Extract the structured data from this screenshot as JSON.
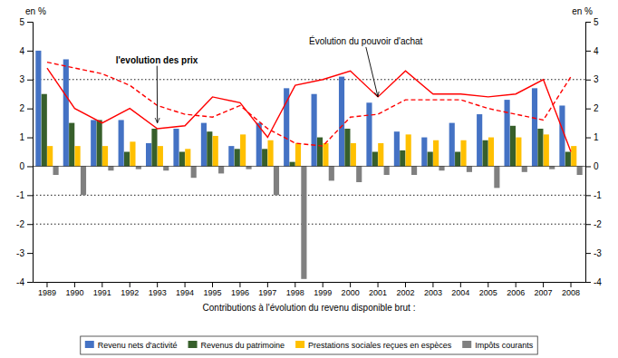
{
  "chart_data": {
    "type": "bar",
    "categories": [
      "1989",
      "1990",
      "1991",
      "1992",
      "1993",
      "1994",
      "1995",
      "1996",
      "1997",
      "1998",
      "1999",
      "2000",
      "2001",
      "2002",
      "2003",
      "2004",
      "2005",
      "2006",
      "2007",
      "2008"
    ],
    "series": [
      {
        "name": "Revenu nets d'activité",
        "type": "bar",
        "color": "#4472C4",
        "values": [
          4.0,
          3.7,
          1.6,
          1.6,
          0.8,
          1.3,
          1.5,
          0.7,
          1.5,
          2.7,
          2.5,
          3.1,
          2.2,
          1.2,
          1.0,
          1.5,
          1.8,
          2.3,
          2.7,
          2.1
        ]
      },
      {
        "name": "Revenus du patrimoine",
        "type": "bar",
        "color": "#375F2B",
        "values": [
          2.5,
          1.5,
          1.6,
          0.5,
          1.3,
          0.5,
          1.2,
          0.6,
          0.6,
          0.15,
          1.0,
          1.3,
          0.5,
          0.55,
          0.5,
          0.5,
          0.9,
          1.4,
          1.3,
          0.5
        ]
      },
      {
        "name": "Prestations sociales reçues en espèces",
        "type": "bar",
        "color": "#FFC000",
        "values": [
          0.7,
          0.7,
          0.7,
          0.85,
          0.7,
          0.6,
          1.05,
          1.1,
          0.9,
          0.8,
          0.8,
          0.8,
          0.8,
          1.1,
          0.9,
          0.9,
          1.0,
          1.0,
          1.1,
          0.7
        ]
      },
      {
        "name": "Impôts courants",
        "type": "bar",
        "color": "#808080",
        "values": [
          -0.3,
          -1.0,
          -0.15,
          -0.1,
          -0.15,
          -0.4,
          -0.25,
          -0.1,
          -1.0,
          -3.9,
          -0.5,
          -0.55,
          -0.3,
          -0.3,
          -0.15,
          -0.2,
          -0.75,
          -0.2,
          -0.1,
          -0.3
        ]
      },
      {
        "type": "line",
        "color": "red",
        "line_style": "dashed",
        "values": [
          3.6,
          3.4,
          3.2,
          2.8,
          2.1,
          1.8,
          1.7,
          2.1,
          1.3,
          0.8,
          0.7,
          1.7,
          1.8,
          2.3,
          2.3,
          2.3,
          2.0,
          1.8,
          1.6,
          3.1
        ]
      },
      {
        "type": "line",
        "color": "red",
        "line_style": "solid",
        "values": [
          3.4,
          2.0,
          1.5,
          2.0,
          1.3,
          1.4,
          2.4,
          2.2,
          1.0,
          2.8,
          3.0,
          3.3,
          2.4,
          3.3,
          2.5,
          2.5,
          2.4,
          2.5,
          3.0,
          0.5
        ]
      }
    ],
    "ylim": [
      -4,
      5
    ],
    "yticks": [
      -4,
      -3,
      -2,
      -1,
      0,
      1,
      2,
      3,
      4,
      5
    ],
    "y2lim": [
      -4,
      5
    ],
    "y2ticks": [
      -4,
      -3,
      -2,
      -1,
      0,
      1,
      2,
      3,
      4,
      5
    ],
    "y_label": "en %",
    "y2_label": "en %",
    "x_label": "Contributions à l'évolution du revenu disponible brut :",
    "reference_lines": [
      3.0,
      -1.0,
      -2.0
    ],
    "annotations": [
      {
        "text": "l'evolution des prix",
        "x": "1993",
        "y": 1.5
      },
      {
        "text": "Évolution du pouvoir d'achat",
        "x": "2001",
        "y": 2.4
      }
    ],
    "legend": "bottom",
    "grid": false
  }
}
